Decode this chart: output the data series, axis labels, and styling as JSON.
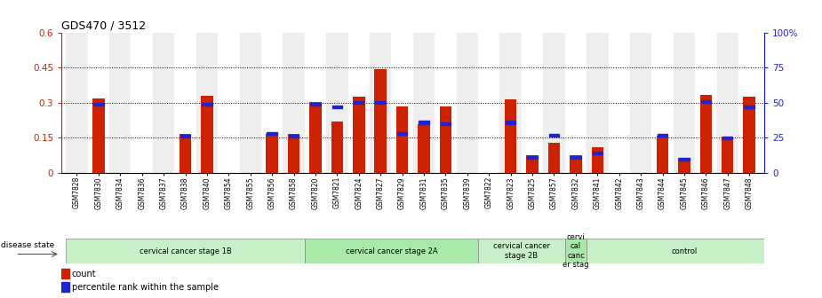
{
  "title": "GDS470 / 3512",
  "samples": [
    "GSM7828",
    "GSM7830",
    "GSM7834",
    "GSM7836",
    "GSM7837",
    "GSM7838",
    "GSM7840",
    "GSM7854",
    "GSM7855",
    "GSM7856",
    "GSM7858",
    "GSM7820",
    "GSM7821",
    "GSM7824",
    "GSM7827",
    "GSM7829",
    "GSM7831",
    "GSM7835",
    "GSM7839",
    "GSM7822",
    "GSM7823",
    "GSM7825",
    "GSM7857",
    "GSM7832",
    "GSM7841",
    "GSM7842",
    "GSM7843",
    "GSM7844",
    "GSM7845",
    "GSM7846",
    "GSM7847",
    "GSM7848"
  ],
  "count": [
    0.0,
    0.32,
    0.0,
    0.0,
    0.0,
    0.165,
    0.33,
    0.0,
    0.0,
    0.165,
    0.165,
    0.305,
    0.22,
    0.325,
    0.445,
    0.285,
    0.21,
    0.285,
    0.0,
    0.0,
    0.315,
    0.075,
    0.13,
    0.075,
    0.11,
    0.0,
    0.0,
    0.16,
    0.065,
    0.335,
    0.155,
    0.325
  ],
  "percentile_raw": [
    0,
    49,
    0,
    0,
    0,
    26,
    49,
    0,
    0,
    28,
    26,
    49,
    47,
    50,
    50,
    28,
    36,
    35,
    0,
    0,
    36,
    11,
    27,
    11,
    14,
    0,
    0,
    27,
    10,
    51,
    25,
    47
  ],
  "groups": [
    {
      "label": "cervical cancer stage 1B",
      "start": 0,
      "end": 11,
      "color": "#c8f0c8"
    },
    {
      "label": "cervical cancer stage 2A",
      "start": 11,
      "end": 19,
      "color": "#a8e8a8"
    },
    {
      "label": "cervical cancer\nstage 2B",
      "start": 19,
      "end": 23,
      "color": "#c8f0c8"
    },
    {
      "label": "cervi\ncal\ncanc\ner stag",
      "start": 23,
      "end": 24,
      "color": "#a8e8a8"
    },
    {
      "label": "control",
      "start": 24,
      "end": 33,
      "color": "#c8f0c8"
    }
  ],
  "ylim_left": [
    0,
    0.6
  ],
  "ylim_right": [
    0,
    100
  ],
  "yticks_left": [
    0,
    0.15,
    0.3,
    0.45,
    0.6
  ],
  "ytick_labels_left": [
    "0",
    "0.15",
    "0.3",
    "0.45",
    "0.6"
  ],
  "yticks_right": [
    0,
    25,
    50,
    75,
    100
  ],
  "ytick_labels_right": [
    "0",
    "25",
    "50",
    "75",
    "100%"
  ],
  "grid_lines": [
    0.15,
    0.3,
    0.45
  ],
  "bar_color": "#cc2200",
  "percentile_color": "#2222cc",
  "background_color": "#ffffff"
}
